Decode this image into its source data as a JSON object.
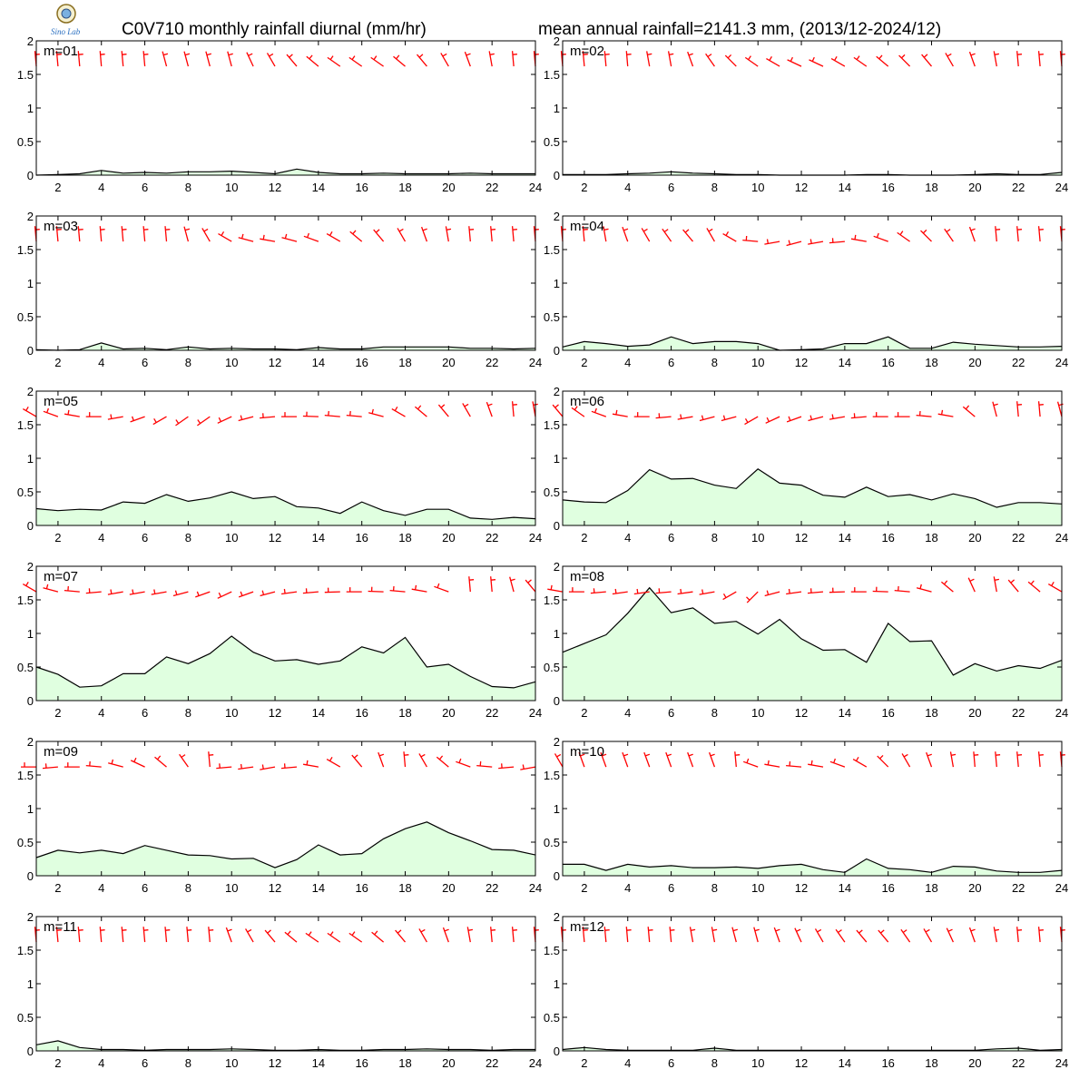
{
  "header": {
    "title_left": "C0V710 monthly rainfall diurnal (mm/hr)",
    "title_right": "mean annual rainfall=2141.3 mm, (2013/12-2024/12)",
    "logo_text": "Sino Lab"
  },
  "colors": {
    "fill": "#e0ffe0",
    "line": "#000000",
    "wind": "#ff0000",
    "frame": "#000000"
  },
  "chart_data": {
    "type": "area",
    "layout": "6 rows x 2 columns of panels, months 01-12",
    "xlim": [
      1,
      24
    ],
    "ylim": [
      0,
      2
    ],
    "x_tick_labels": [
      "2",
      "4",
      "6",
      "8",
      "10",
      "12",
      "14",
      "16",
      "18",
      "20",
      "22",
      "24"
    ],
    "y_tick_labels": [
      "0",
      "0.5",
      "1",
      "1.5",
      "2"
    ],
    "x": [
      1,
      2,
      3,
      4,
      5,
      6,
      7,
      8,
      9,
      10,
      11,
      12,
      13,
      14,
      15,
      16,
      17,
      18,
      19,
      20,
      21,
      22,
      23,
      24
    ],
    "series": [
      {
        "label": "m=01",
        "values": [
          0.0,
          0.01,
          0.02,
          0.07,
          0.03,
          0.04,
          0.03,
          0.05,
          0.05,
          0.06,
          0.04,
          0.02,
          0.09,
          0.04,
          0.02,
          0.02,
          0.03,
          0.02,
          0.02,
          0.02,
          0.03,
          0.02,
          0.02,
          0.02
        ]
      },
      {
        "label": "m=02",
        "values": [
          0.01,
          0.01,
          0.01,
          0.02,
          0.03,
          0.05,
          0.03,
          0.02,
          0.01,
          0.01,
          0.0,
          0.0,
          0.0,
          0.0,
          0.01,
          0.01,
          0.0,
          0.0,
          0.0,
          0.01,
          0.02,
          0.01,
          0.01,
          0.04
        ]
      },
      {
        "label": "m=03",
        "values": [
          0.01,
          0.0,
          0.01,
          0.11,
          0.02,
          0.03,
          0.01,
          0.05,
          0.02,
          0.03,
          0.02,
          0.02,
          0.01,
          0.04,
          0.02,
          0.02,
          0.05,
          0.05,
          0.05,
          0.05,
          0.03,
          0.03,
          0.02,
          0.03
        ]
      },
      {
        "label": "m=04",
        "values": [
          0.05,
          0.13,
          0.1,
          0.06,
          0.08,
          0.2,
          0.1,
          0.13,
          0.13,
          0.1,
          0.0,
          0.01,
          0.02,
          0.1,
          0.1,
          0.2,
          0.03,
          0.03,
          0.12,
          0.09,
          0.07,
          0.05,
          0.05,
          0.06
        ]
      },
      {
        "label": "m=05",
        "values": [
          0.25,
          0.22,
          0.24,
          0.23,
          0.35,
          0.33,
          0.46,
          0.36,
          0.41,
          0.5,
          0.4,
          0.43,
          0.28,
          0.26,
          0.18,
          0.35,
          0.22,
          0.15,
          0.24,
          0.24,
          0.11,
          0.09,
          0.12,
          0.1
        ]
      },
      {
        "label": "m=06",
        "values": [
          0.38,
          0.35,
          0.34,
          0.52,
          0.83,
          0.69,
          0.7,
          0.6,
          0.55,
          0.84,
          0.63,
          0.6,
          0.45,
          0.42,
          0.57,
          0.43,
          0.46,
          0.38,
          0.47,
          0.4,
          0.27,
          0.34,
          0.34,
          0.32
        ]
      },
      {
        "label": "m=07",
        "values": [
          0.5,
          0.39,
          0.2,
          0.22,
          0.4,
          0.4,
          0.65,
          0.55,
          0.7,
          0.96,
          0.72,
          0.59,
          0.61,
          0.54,
          0.59,
          0.8,
          0.71,
          0.94,
          0.5,
          0.54,
          0.36,
          0.21,
          0.19,
          0.28
        ]
      },
      {
        "label": "m=08",
        "values": [
          0.72,
          0.85,
          0.98,
          1.3,
          1.68,
          1.31,
          1.38,
          1.15,
          1.18,
          0.99,
          1.21,
          0.92,
          0.75,
          0.76,
          0.57,
          1.15,
          0.88,
          0.89,
          0.38,
          0.55,
          0.44,
          0.52,
          0.48,
          0.6
        ]
      },
      {
        "label": "m=09",
        "values": [
          0.27,
          0.38,
          0.34,
          0.38,
          0.33,
          0.45,
          0.38,
          0.31,
          0.3,
          0.25,
          0.26,
          0.12,
          0.24,
          0.46,
          0.31,
          0.33,
          0.55,
          0.7,
          0.8,
          0.64,
          0.52,
          0.39,
          0.38,
          0.31
        ]
      },
      {
        "label": "m=10",
        "values": [
          0.17,
          0.17,
          0.08,
          0.17,
          0.13,
          0.15,
          0.12,
          0.12,
          0.13,
          0.11,
          0.15,
          0.17,
          0.09,
          0.05,
          0.25,
          0.11,
          0.09,
          0.05,
          0.14,
          0.13,
          0.07,
          0.05,
          0.05,
          0.08
        ]
      },
      {
        "label": "m=11",
        "values": [
          0.09,
          0.15,
          0.05,
          0.02,
          0.02,
          0.01,
          0.02,
          0.02,
          0.02,
          0.03,
          0.02,
          0.01,
          0.01,
          0.02,
          0.01,
          0.01,
          0.02,
          0.02,
          0.03,
          0.02,
          0.02,
          0.01,
          0.02,
          0.02
        ]
      },
      {
        "label": "m=12",
        "values": [
          0.02,
          0.05,
          0.02,
          0.01,
          0.01,
          0.01,
          0.01,
          0.04,
          0.01,
          0.01,
          0.01,
          0.01,
          0.01,
          0.01,
          0.01,
          0.01,
          0.01,
          0.01,
          0.01,
          0.01,
          0.03,
          0.04,
          0.01,
          0.02
        ]
      }
    ],
    "wind_direction_deg": [
      [
        355,
        355,
        355,
        355,
        355,
        355,
        345,
        345,
        345,
        345,
        335,
        330,
        320,
        310,
        305,
        305,
        305,
        310,
        320,
        330,
        340,
        350,
        355,
        355
      ],
      [
        355,
        355,
        355,
        355,
        350,
        350,
        340,
        325,
        315,
        305,
        300,
        295,
        295,
        300,
        305,
        310,
        315,
        320,
        330,
        340,
        350,
        355,
        355,
        355
      ],
      [
        355,
        355,
        355,
        355,
        355,
        355,
        355,
        345,
        330,
        300,
        285,
        280,
        285,
        290,
        300,
        310,
        320,
        330,
        340,
        350,
        355,
        355,
        355,
        355
      ],
      [
        355,
        355,
        350,
        340,
        330,
        325,
        320,
        330,
        300,
        275,
        260,
        255,
        260,
        265,
        280,
        290,
        305,
        315,
        325,
        340,
        355,
        355,
        355,
        355
      ],
      [
        300,
        290,
        280,
        270,
        260,
        250,
        240,
        235,
        235,
        245,
        255,
        265,
        270,
        272,
        275,
        275,
        285,
        300,
        310,
        320,
        330,
        340,
        355,
        350
      ],
      [
        320,
        305,
        290,
        280,
        270,
        265,
        260,
        255,
        255,
        240,
        245,
        250,
        255,
        260,
        265,
        270,
        270,
        275,
        280,
        310,
        345,
        355,
        355,
        345
      ],
      [
        300,
        285,
        275,
        265,
        260,
        260,
        260,
        255,
        250,
        245,
        250,
        255,
        262,
        265,
        268,
        270,
        272,
        275,
        280,
        290,
        355,
        355,
        345,
        320
      ],
      [
        280,
        270,
        265,
        262,
        262,
        265,
        262,
        260,
        240,
        225,
        255,
        262,
        265,
        268,
        270,
        272,
        275,
        285,
        310,
        335,
        350,
        320,
        310,
        300
      ],
      [
        270,
        265,
        270,
        275,
        285,
        295,
        310,
        325,
        355,
        265,
        262,
        260,
        265,
        280,
        300,
        320,
        340,
        355,
        330,
        310,
        290,
        275,
        265,
        260
      ],
      [
        330,
        340,
        340,
        340,
        340,
        340,
        340,
        340,
        355,
        290,
        280,
        275,
        280,
        290,
        300,
        315,
        330,
        340,
        350,
        355,
        355,
        355,
        355,
        355
      ],
      [
        355,
        355,
        355,
        355,
        355,
        355,
        355,
        355,
        355,
        340,
        330,
        320,
        310,
        305,
        305,
        305,
        310,
        320,
        330,
        340,
        350,
        355,
        355,
        355
      ],
      [
        355,
        355,
        355,
        355,
        355,
        355,
        350,
        350,
        345,
        345,
        340,
        335,
        330,
        325,
        320,
        320,
        325,
        330,
        335,
        340,
        350,
        355,
        355,
        355
      ]
    ],
    "grid": false
  }
}
